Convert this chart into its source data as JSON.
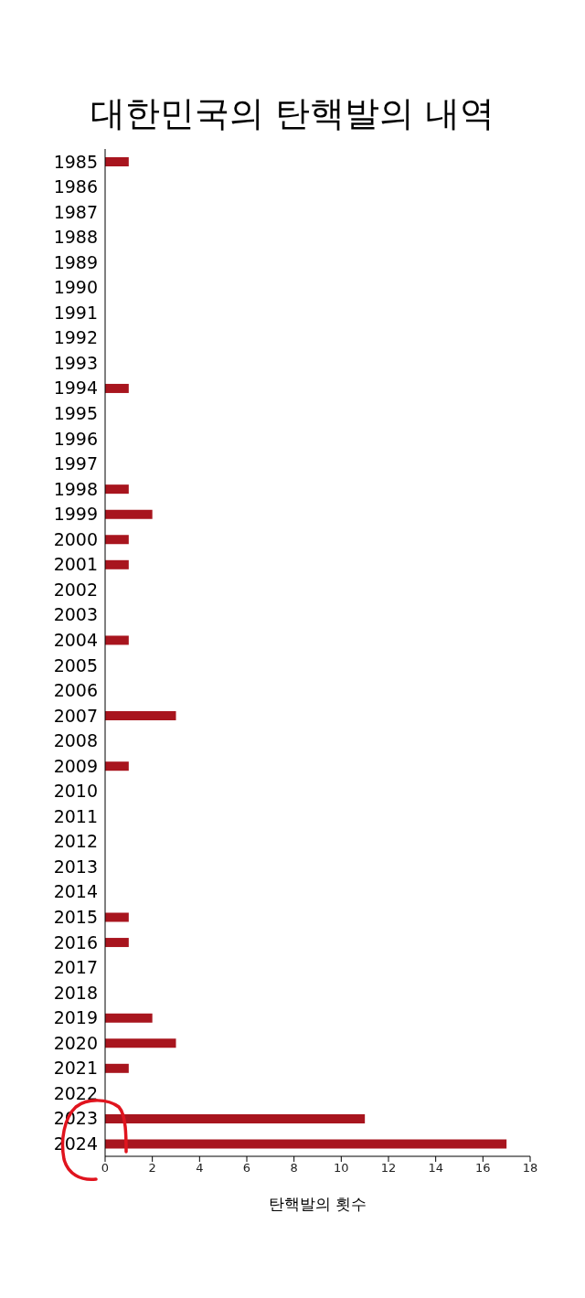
{
  "chart_data": {
    "type": "bar",
    "orientation": "horizontal",
    "title": "대한민국의 탄핵발의 내역",
    "xlabel": "탄핵발의 횟수",
    "categories": [
      "1985",
      "1986",
      "1987",
      "1988",
      "1989",
      "1990",
      "1991",
      "1992",
      "1993",
      "1994",
      "1995",
      "1996",
      "1997",
      "1998",
      "1999",
      "2000",
      "2001",
      "2002",
      "2003",
      "2004",
      "2005",
      "2006",
      "2007",
      "2008",
      "2009",
      "2010",
      "2011",
      "2012",
      "2013",
      "2014",
      "2015",
      "2016",
      "2017",
      "2018",
      "2019",
      "2020",
      "2021",
      "2022",
      "2023",
      "2024"
    ],
    "values": [
      1,
      0,
      0,
      0,
      0,
      0,
      0,
      0,
      0,
      1,
      0,
      0,
      0,
      1,
      2,
      1,
      1,
      0,
      0,
      1,
      0,
      0,
      3,
      0,
      1,
      0,
      0,
      0,
      0,
      0,
      1,
      1,
      0,
      0,
      2,
      3,
      1,
      0,
      11,
      17
    ],
    "color": "#a8151e",
    "xlim": [
      0,
      18
    ],
    "xticks": [
      0,
      2,
      4,
      6,
      8,
      10,
      12,
      14,
      16,
      18
    ],
    "grid": false,
    "legend": false
  }
}
